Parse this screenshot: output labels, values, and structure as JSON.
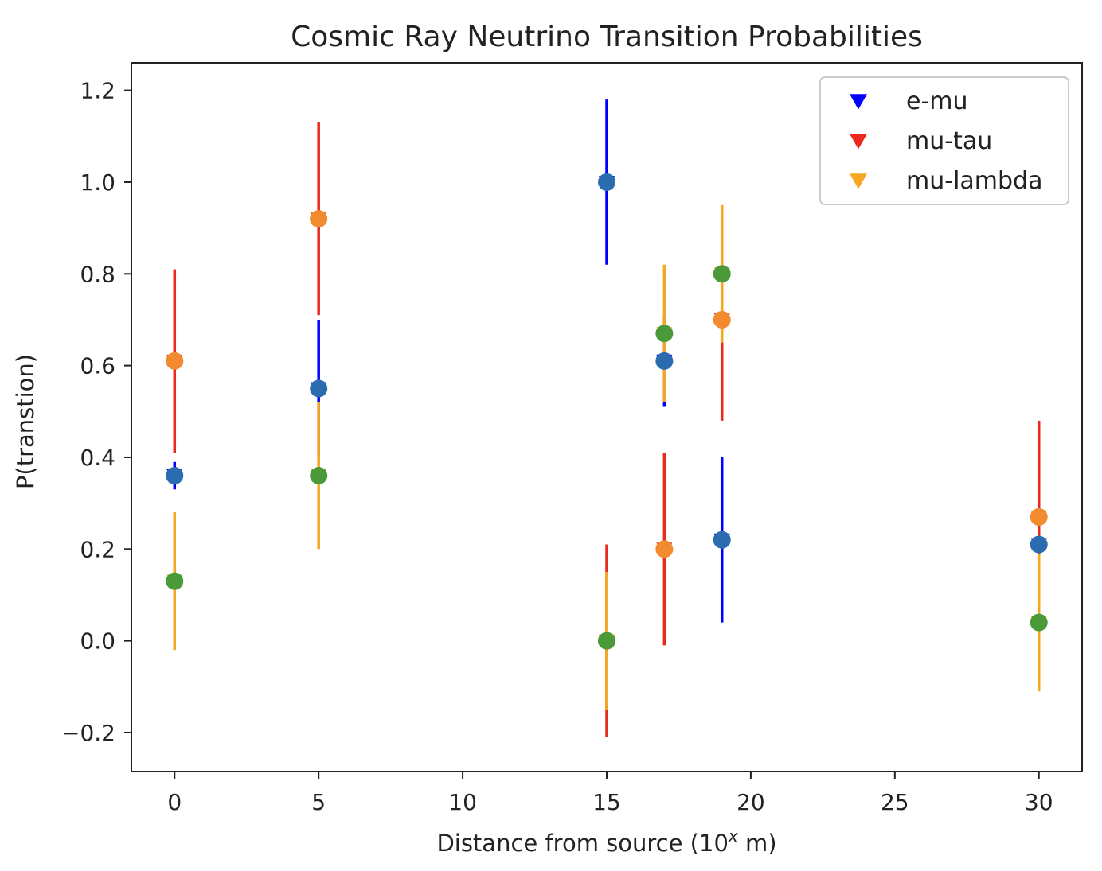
{
  "chart_data": {
    "type": "scatter",
    "title": "Cosmic Ray Neutrino Transition Probabilities",
    "xlabel_main": "Distance from source (10",
    "xlabel_sup": "x",
    "xlabel_tail": " m)",
    "ylabel": "P(transtion)",
    "xlim": [
      -1.5,
      31.5
    ],
    "ylim": [
      -0.285,
      1.26
    ],
    "x_ticks": [
      0,
      5,
      10,
      15,
      20,
      25,
      30
    ],
    "x_tick_labels": [
      "0",
      "5",
      "10",
      "15",
      "20",
      "25",
      "30"
    ],
    "y_ticks": [
      -0.2,
      0.0,
      0.2,
      0.4,
      0.6,
      0.8,
      1.0,
      1.2
    ],
    "y_tick_labels": [
      "−0.2",
      "0.0",
      "0.2",
      "0.4",
      "0.6",
      "0.8",
      "1.0",
      "1.2"
    ],
    "legend_position": "top-right",
    "grid": false,
    "x": [
      0,
      5,
      15,
      17,
      19,
      30
    ],
    "series": [
      {
        "name": "e-mu",
        "marker": "triangle-down",
        "color": "#0000ff",
        "dot_color": "#2b6cb0",
        "values": [
          0.36,
          0.55,
          1.0,
          0.61,
          0.22,
          0.21
        ],
        "errors": [
          0.03,
          0.15,
          0.18,
          0.1,
          0.18,
          0.02
        ]
      },
      {
        "name": "mu-tau",
        "marker": "triangle-down",
        "color": "#e8291c",
        "dot_color": "#f28a30",
        "values": [
          0.61,
          0.92,
          0.0,
          0.2,
          0.7,
          0.27
        ],
        "errors": [
          0.2,
          0.21,
          0.21,
          0.21,
          0.22,
          0.21
        ]
      },
      {
        "name": "mu-lambda",
        "marker": "triangle-down",
        "color": "#f5a623",
        "dot_color": "#4a9a3a",
        "values": [
          0.13,
          0.36,
          0.0,
          0.67,
          0.8,
          0.04
        ],
        "errors": [
          0.15,
          0.16,
          0.15,
          0.15,
          0.15,
          0.15
        ]
      }
    ]
  }
}
